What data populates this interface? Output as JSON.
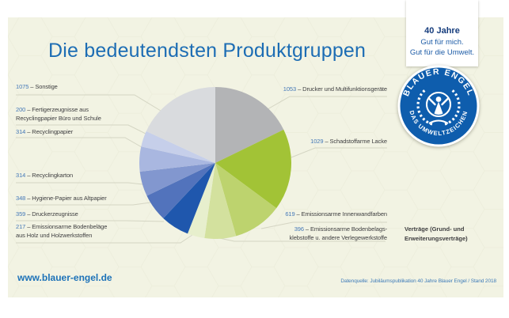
{
  "title": "Die bedeutendsten Produktgruppen",
  "badge": {
    "year_line": "40 Jahre",
    "tagline1": "Gut für mich.",
    "tagline2": "Gut für die Umwelt."
  },
  "logo": {
    "arc_top": "BLAUER ENGEL",
    "arc_bottom": "DAS UMWELTZEICHEN"
  },
  "labels": {
    "left": [
      {
        "value": "1075",
        "text": "– Sonstige"
      },
      {
        "value": "200",
        "text": "– Fertigerzeugnisse aus",
        "text2": "Recyclingpapier Büro und Schule"
      },
      {
        "value": "314",
        "text": "– Recyclingpapier"
      },
      {
        "value": "314",
        "text": "– Recyclingkarton"
      },
      {
        "value": "348",
        "text": "– Hygiene-Papier aus Altpapier"
      },
      {
        "value": "359",
        "text": "– Druckerzeugnisse"
      },
      {
        "value": "217",
        "text": "– Emissionsarme Bodenbeläge",
        "text2": "aus Holz und Holzwerkstoffen"
      }
    ],
    "right": [
      {
        "value": "1053",
        "text": "– Drucker und Multifunktionsgeräte"
      },
      {
        "value": "1029",
        "text": "– Schadstoffarme Lacke"
      },
      {
        "value": "619",
        "text": "– Emissionsarme Innenwandfarben"
      },
      {
        "value": "396",
        "text": "– Emissionsarme Bodenbelags-",
        "text2": "klebstoffe u. andere Verlegewerkstoffe"
      }
    ]
  },
  "note": {
    "line1": "Verträge (Grund- und",
    "line2": "Erweiterungsverträge)"
  },
  "footer": {
    "website": "www.blauer-engel.de",
    "source": "Datenquelle: Jubiläumspublikation 40 Jahre Blauer Engel / Stand 2018"
  },
  "colors": {
    "title_blue": "#1d6db4",
    "engel_blue": "#0e5dad",
    "panel_bg": "#f2f3e3",
    "label_number_blue": "#4478b8"
  },
  "chart_data": {
    "type": "pie",
    "title": "Die bedeutendsten Produktgruppen",
    "unit_note": "Verträge (Grund- und Erweiterungsverträge)",
    "start_angle_deg": 0,
    "direction": "clockwise",
    "legend_position": "callout-labels",
    "slices": [
      {
        "label": "Drucker und Multifunktionsgeräte",
        "value": 1053,
        "color": "#b3b4b6"
      },
      {
        "label": "Schadstoffarme Lacke",
        "value": 1029,
        "color": "#a2c336"
      },
      {
        "label": "Emissionsarme Innenwandfarben",
        "value": 619,
        "color": "#bdd36e"
      },
      {
        "label": "Emissionsarme Bodenbelagsklebstoffe u. andere Verlegewerkstoffe",
        "value": 396,
        "color": "#d3e19e"
      },
      {
        "label": "Emissionsarme Bodenbeläge aus Holz und Holzwerkstoffen",
        "value": 217,
        "color": "#e7efcd"
      },
      {
        "label": "Druckerzeugnisse",
        "value": 359,
        "color": "#1f57ad"
      },
      {
        "label": "Hygiene-Papier aus Altpapier",
        "value": 348,
        "color": "#5273bc"
      },
      {
        "label": "Recyclingkarton",
        "value": 314,
        "color": "#8297cf"
      },
      {
        "label": "Recyclingpapier",
        "value": 314,
        "color": "#a9b7e0"
      },
      {
        "label": "Fertigerzeugnisse aus Recyclingpapier Büro und Schule",
        "value": 200,
        "color": "#c6cfea"
      },
      {
        "label": "Sonstige",
        "value": 1075,
        "color": "#d9dbde"
      }
    ]
  }
}
